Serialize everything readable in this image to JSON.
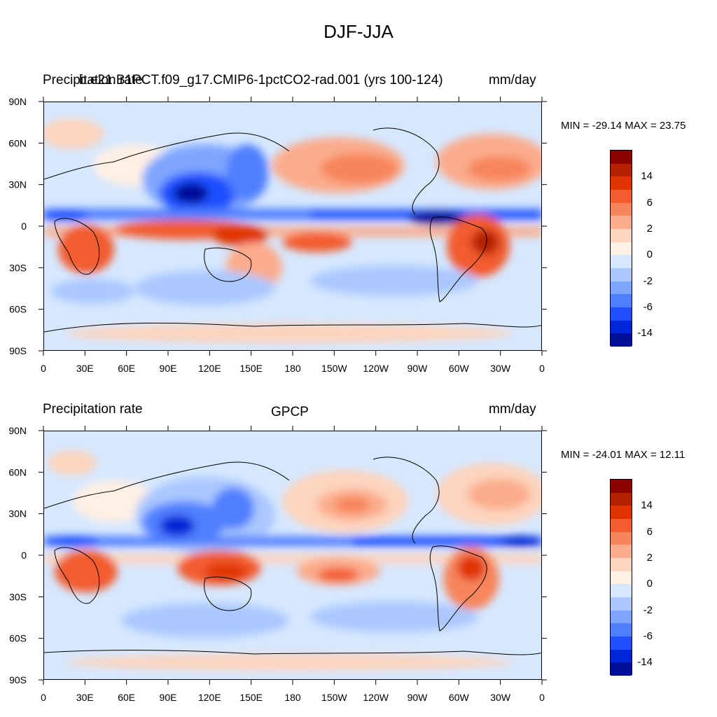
{
  "title": "DJF-JJA",
  "panels": [
    {
      "id": "top",
      "left_label": "Precipitation rate",
      "center_label": "b.e21.B1PCT.f09_g17.CMIP6-1pctCO2-rad.001 (yrs 100-124)",
      "right_label": "mm/day",
      "min_max": "MIN = -29.14 MAX =  23.75"
    },
    {
      "id": "bottom",
      "left_label": "Precipitation rate",
      "center_label": "GPCP",
      "right_label": "mm/day",
      "min_max": "MIN = -24.01 MAX =  12.11"
    }
  ],
  "colorbar": {
    "colors": [
      "#8b0000",
      "#b52000",
      "#e03400",
      "#f25c2e",
      "#f7855c",
      "#fbac8c",
      "#fdd4bd",
      "#fff0e4",
      "#d6e8ff",
      "#aac8ff",
      "#7ea6ff",
      "#4f7fff",
      "#1f4fff",
      "#0026d6",
      "#000f99"
    ],
    "labels": [
      "14",
      "6",
      "2",
      "0",
      "-2",
      "-6",
      "-14"
    ]
  },
  "axes": {
    "lat_ticks": [
      "90N",
      "60N",
      "30N",
      "0",
      "30S",
      "60S",
      "90S"
    ],
    "lon_ticks": [
      "0",
      "30E",
      "60E",
      "90E",
      "120E",
      "150E",
      "180",
      "150W",
      "120W",
      "90W",
      "60W",
      "30W",
      "0"
    ]
  },
  "chart_data": [
    {
      "type": "heatmap",
      "title": "DJF-JJA",
      "left_label": "Precipitation rate",
      "center_label": "b.e21.B1PCT.f09_g17.CMIP6-1pctCO2-rad.001 (yrs 100-124)",
      "units": "mm/day",
      "min": -29.14,
      "max": 23.75,
      "x_range": [
        0,
        360
      ],
      "y_range": [
        -90,
        90
      ],
      "contour_levels": [
        -14,
        -6,
        -2,
        0,
        2,
        6,
        14
      ]
    },
    {
      "type": "heatmap",
      "title": "DJF-JJA",
      "left_label": "Precipitation rate",
      "center_label": "GPCP",
      "units": "mm/day",
      "min": -24.01,
      "max": 12.11,
      "x_range": [
        0,
        360
      ],
      "y_range": [
        -90,
        90
      ],
      "contour_levels": [
        -14,
        -6,
        -2,
        0,
        2,
        6,
        14
      ]
    }
  ]
}
